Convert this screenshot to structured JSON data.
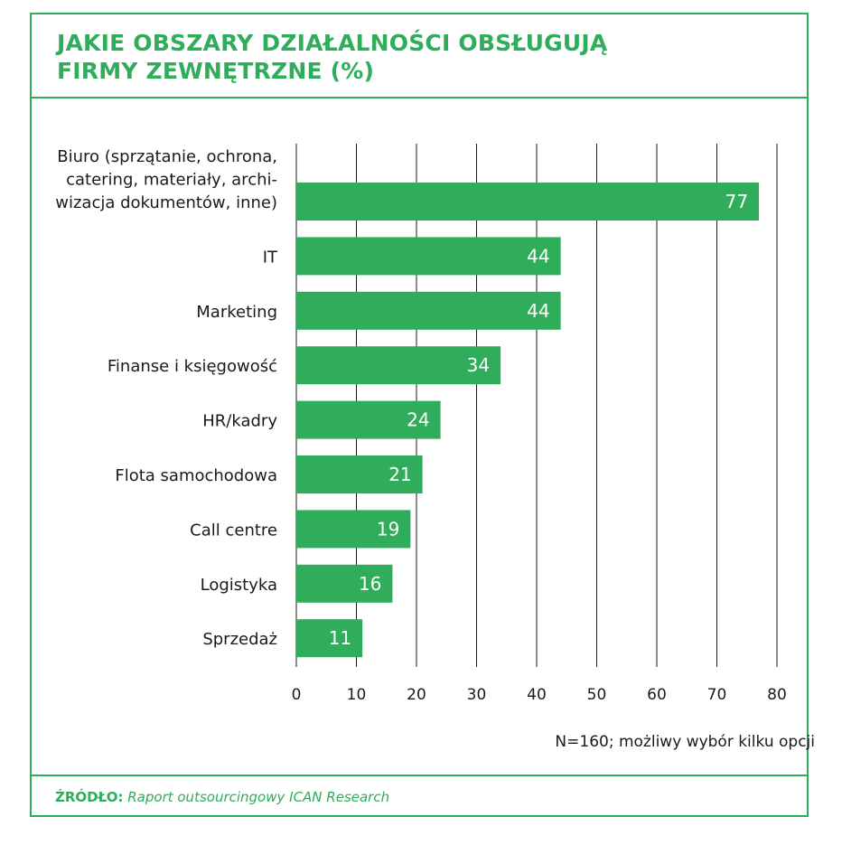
{
  "title_line1": "JAKIE OBSZARY DZIAŁALNOŚCI OBSŁUGUJĄ",
  "title_line2": "FIRMY ZEWNĘTRZNE (%)",
  "note": "N=160; możliwy wybór kilku opcji",
  "source_label": "ŹRÓDŁO:",
  "source_text": " Raport outsourcingowy ICAN Research",
  "colors": {
    "accent": "#2fad5a",
    "bar": "#2fad5a",
    "grid": "#1a1a1a",
    "text": "#1a1a1a"
  },
  "chart_data": {
    "type": "bar",
    "orientation": "horizontal",
    "categories": [
      [
        "Biuro (sprzątanie, ochrona,",
        "catering, materiały, archi-",
        "wizacja dokumentów, inne)"
      ],
      [
        "IT"
      ],
      [
        "Marketing"
      ],
      [
        "Finanse i księgowość"
      ],
      [
        "HR/kadry"
      ],
      [
        "Flota samochodowa"
      ],
      [
        "Call centre"
      ],
      [
        "Logistyka"
      ],
      [
        "Sprzedaż"
      ]
    ],
    "values": [
      77,
      44,
      44,
      34,
      24,
      21,
      19,
      16,
      11
    ],
    "xlim": [
      0,
      80
    ],
    "xticks": [
      0,
      10,
      20,
      30,
      40,
      50,
      60,
      70,
      80
    ],
    "grid": true,
    "data_labels": true
  }
}
